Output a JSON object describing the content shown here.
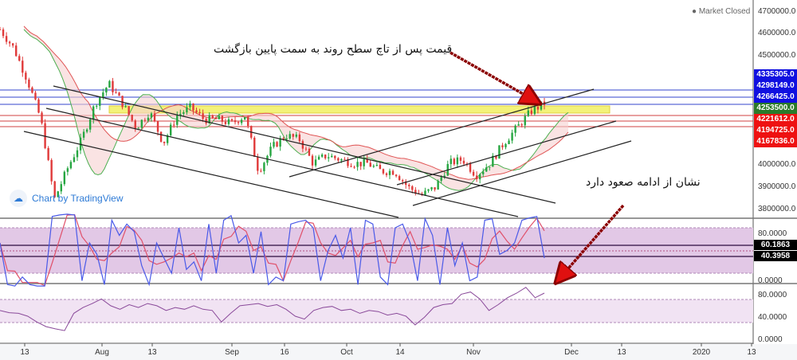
{
  "status": {
    "market": "Market Closed"
  },
  "watermark": {
    "label": "Chart by TradingView"
  },
  "annotations": {
    "top_note": "قیمت پس از تاچ سطح روند به سمت پایین بازگشت",
    "bottom_note": "نشان از ادامه صعود دارد"
  },
  "price_axis": {
    "ticks": [
      "4700000.0",
      "4600000.0",
      "4500000.0",
      "4000000.0",
      "3900000.0",
      "3800000.0"
    ],
    "tags": [
      {
        "value": "4335305.0",
        "color": "#1010e0"
      },
      {
        "value": "4298149.0",
        "color": "#1010e0"
      },
      {
        "value": "4266425.0",
        "color": "#1010e0"
      },
      {
        "value": "4253500.0",
        "color": "#2a7a2a"
      },
      {
        "value": "4221612.0",
        "color": "#ee1111"
      },
      {
        "value": "4194725.0",
        "color": "#ee1111"
      },
      {
        "value": "4167836.0",
        "color": "#ee1111"
      }
    ]
  },
  "stoch_axis": {
    "ticks": [
      "80.0000",
      "0.0000"
    ],
    "tags": [
      "60.1863",
      "40.3958"
    ]
  },
  "rsi_axis": {
    "ticks": [
      "80.0000",
      "40.0000",
      "0.0000"
    ]
  },
  "time_axis": {
    "ticks": [
      "13",
      "Aug",
      "13",
      "Sep",
      "16",
      "Oct",
      "14",
      "Nov",
      "Dec",
      "13",
      "2020",
      "13"
    ]
  },
  "colors": {
    "bull": "#26a641",
    "bear": "#e03a3a",
    "cloud_fast": "#4caf50",
    "cloud_slow": "#e05555",
    "stoch_k": "#4a5ae8",
    "stoch_d": "#e0506a",
    "rsi": "#8a4a9a",
    "arrow": "#8b0000"
  },
  "chart_data": {
    "type": "line",
    "price_closes": [
      4616000,
      4531000,
      4385000,
      4202000,
      3835000,
      3982000,
      4110000,
      4275000,
      4367000,
      4275000,
      4165000,
      4238000,
      4092000,
      4220000,
      4257000,
      4202000,
      4202000,
      4183000,
      4220000,
      3964000,
      4074000,
      4129000,
      4110000,
      4000000,
      4037000,
      4018000,
      4000000,
      4000000,
      3964000,
      3964000,
      3890000,
      3854000,
      3890000,
      4000000,
      4018000,
      3945000,
      4000000,
      4092000,
      4165000,
      4238000,
      4275000
    ],
    "stochastic_k": [
      60,
      5,
      3,
      15,
      5,
      3,
      3,
      95,
      97,
      98,
      97,
      10,
      60,
      45,
      5,
      90,
      70,
      85,
      75,
      30,
      5,
      60,
      40,
      20,
      80,
      25,
      35,
      10,
      85,
      20,
      90,
      96,
      60,
      70,
      20,
      75,
      5,
      15,
      10,
      85,
      88,
      90,
      80,
      10,
      50,
      70,
      40,
      80,
      5,
      90,
      85,
      15,
      5,
      80,
      85,
      60,
      10,
      92,
      70,
      5,
      80,
      30,
      60,
      10,
      15,
      90,
      92,
      45,
      50,
      60,
      90,
      93,
      95,
      40
    ],
    "rsi": [
      50,
      46,
      45,
      40,
      30,
      22,
      18,
      15,
      45,
      55,
      62,
      70,
      58,
      52,
      60,
      55,
      62,
      58,
      50,
      55,
      52,
      58,
      52,
      50,
      30,
      45,
      58,
      60,
      62,
      57,
      60,
      52,
      40,
      35,
      50,
      55,
      57,
      50,
      52,
      45,
      50,
      48,
      42,
      45,
      40,
      25,
      38,
      55,
      60,
      62,
      78,
      82,
      70,
      50,
      60,
      72,
      80,
      90,
      72,
      80
    ],
    "stoch_levels": [
      80,
      20
    ],
    "rsi_levels": [
      70,
      30
    ]
  }
}
